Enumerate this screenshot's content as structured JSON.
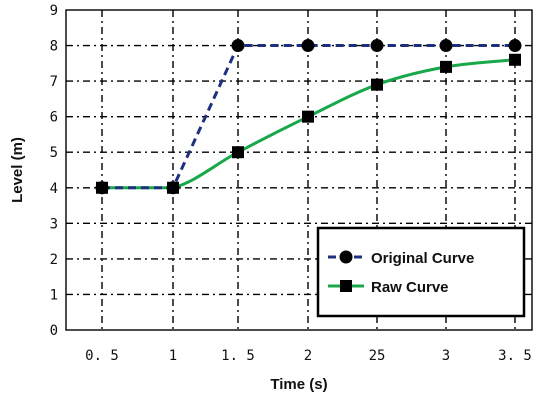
{
  "chart_data": {
    "type": "line",
    "categories": [
      "0. 5",
      "1",
      "1. 5",
      "2",
      "25",
      "3",
      "3. 5"
    ],
    "xlabel": "Time (s)",
    "ylabel": "Level (m)",
    "ylim": [
      0,
      9
    ],
    "yticks": [
      "0",
      "1",
      "2",
      "3",
      "4",
      "5",
      "6",
      "7",
      "8",
      "9"
    ],
    "grid": true,
    "legend_position": "bottom-right",
    "series": [
      {
        "name": "Original Curve",
        "values": [
          4.0,
          4.0,
          8.0,
          8.0,
          8.0,
          8.0,
          8.0
        ],
        "color": "#1f2f7f",
        "line_style": "dashed",
        "marker": "circle"
      },
      {
        "name": "Raw Curve",
        "values": [
          4.0,
          4.0,
          5.0,
          6.0,
          6.9,
          7.4,
          7.6
        ],
        "color": "#18a84a",
        "line_style": "solid",
        "marker": "square"
      }
    ]
  }
}
